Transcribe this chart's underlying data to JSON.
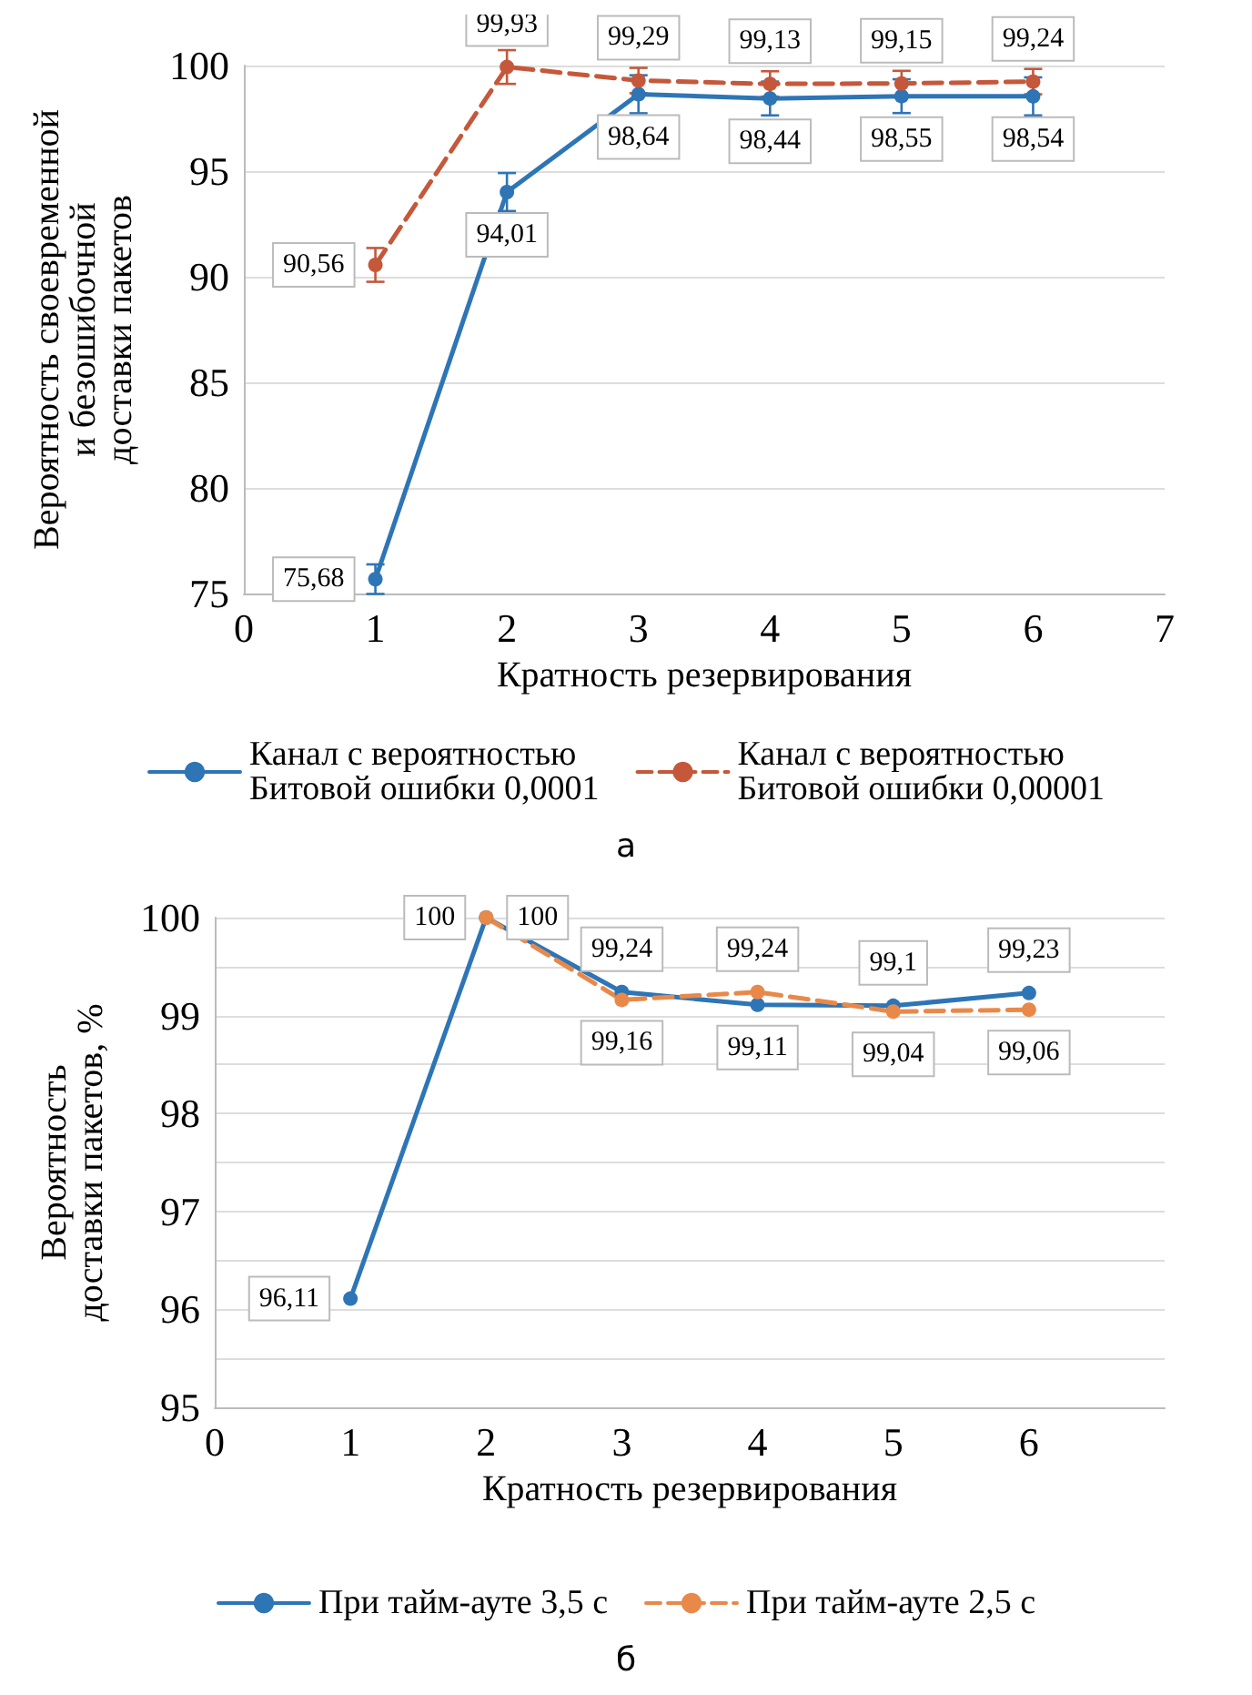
{
  "chart_data": [
    {
      "type": "line",
      "xlabel": "Кратность резервирования",
      "ylabel": "Вероятность своевременной\nи безошибочной\nдоставки пакетов",
      "x": [
        1,
        2,
        3,
        4,
        5,
        6
      ],
      "xlim": [
        0,
        7
      ],
      "xticks": [
        0,
        1,
        2,
        3,
        4,
        5,
        6,
        7
      ],
      "ylim": [
        75,
        100
      ],
      "yticks": [
        75,
        80,
        85,
        90,
        95,
        100
      ],
      "grid": "y",
      "legend": "bottom",
      "marker": "circle",
      "annotations": [
        "а"
      ],
      "series": [
        {
          "name": "Канал с вероятностью\nБитовой ошибки 0,0001",
          "color": "#2e75b6",
          "line_style": "solid",
          "values": [
            75.68,
            94.01,
            98.64,
            98.44,
            98.55,
            98.54
          ],
          "value_labels": [
            "75,68",
            "94,01",
            "98,64",
            "98,44",
            "98,55",
            "98,54"
          ],
          "errors": [
            0.7,
            0.9,
            0.9,
            0.8,
            0.8,
            0.9
          ]
        },
        {
          "name": "Канал с вероятностью\nБитовой ошибки 0,00001",
          "color": "#c5583a",
          "line_style": "dashed",
          "values": [
            90.56,
            99.93,
            99.29,
            99.13,
            99.15,
            99.24
          ],
          "value_labels": [
            "90,56",
            "99,93",
            "99,29",
            "99,13",
            "99,15",
            "99,24"
          ],
          "errors": [
            0.8,
            0.8,
            0.6,
            0.6,
            0.6,
            0.6
          ]
        }
      ]
    },
    {
      "type": "line",
      "xlabel": "Кратность резервирования",
      "ylabel": "Вероятность\nдоставки пакетов, %",
      "x": [
        1,
        2,
        3,
        4,
        5,
        6
      ],
      "xlim": [
        0,
        7
      ],
      "xticks": [
        0,
        1,
        2,
        3,
        4,
        5,
        6
      ],
      "ylim": [
        95,
        100
      ],
      "yticks": [
        95,
        {
          "value": 95.5,
          "label": null
        },
        96,
        {
          "value": 96.5,
          "label": null
        },
        97,
        {
          "value": 97.5,
          "label": null
        },
        98,
        {
          "value": 98.5,
          "label": null
        },
        99,
        {
          "value": 99.5,
          "label": null
        },
        100
      ],
      "grid": "y",
      "legend": "bottom",
      "marker": "circle",
      "annotations": [
        "б"
      ],
      "series": [
        {
          "name": "При тайм-ауте 3,5 с",
          "color": "#2e75b6",
          "line_style": "solid",
          "values": [
            96.11,
            100,
            99.24,
            99.11,
            99.1,
            99.23
          ],
          "value_labels": [
            "96,11",
            "100",
            "99,24",
            "99,11",
            "99,1",
            "99,23"
          ]
        },
        {
          "name": "При тайм-ауте 2,5 с",
          "color": "#e8894a",
          "line_style": "dashed",
          "values": [
            null,
            100,
            99.16,
            99.24,
            99.04,
            99.06
          ],
          "value_labels": [
            null,
            "100",
            "99,16",
            "99,24",
            "99,04",
            "99,06"
          ]
        }
      ]
    }
  ]
}
